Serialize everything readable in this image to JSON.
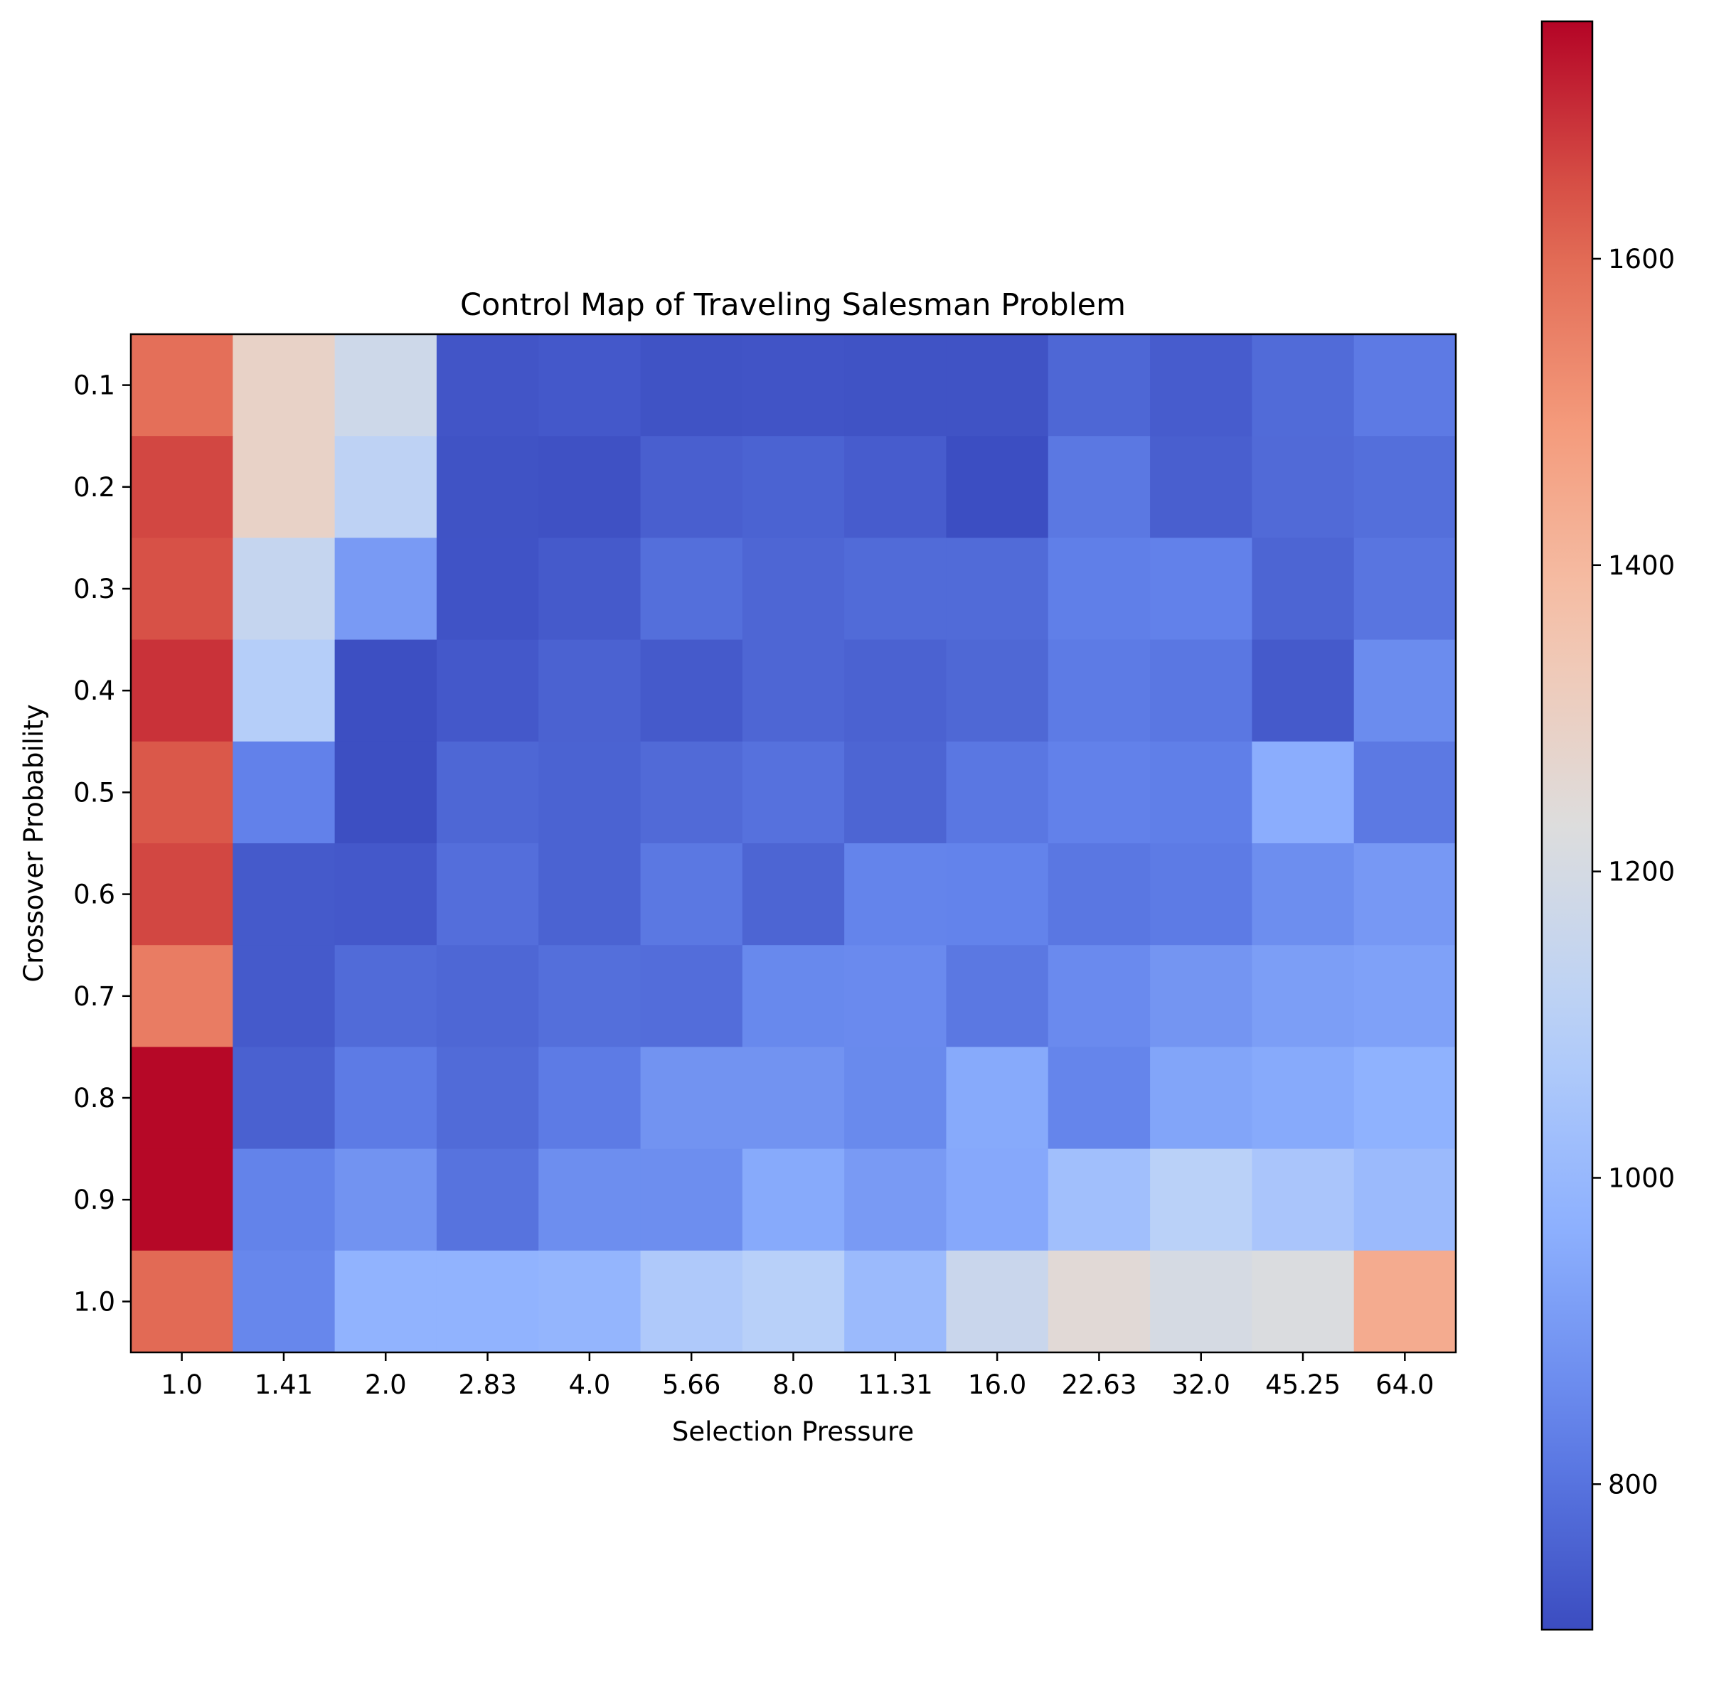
{
  "chart_data": {
    "type": "heatmap",
    "title": "Control Map of Traveling Salesman Problem",
    "xlabel": "Selection Pressure",
    "ylabel": "Crossover Probability",
    "x_categories": [
      "1.0",
      "1.41",
      "2.0",
      "2.83",
      "4.0",
      "5.66",
      "8.0",
      "11.31",
      "16.0",
      "22.63",
      "32.0",
      "45.25",
      "64.0"
    ],
    "y_categories": [
      "0.1",
      "0.2",
      "0.3",
      "0.4",
      "0.5",
      "0.6",
      "0.7",
      "0.8",
      "0.9",
      "1.0"
    ],
    "values": [
      [
        1590,
        1290,
        1175,
        728,
        735,
        722,
        725,
        722,
        722,
        770,
        745,
        780,
        818
      ],
      [
        1660,
        1290,
        1120,
        722,
        718,
        752,
        760,
        745,
        710,
        812,
        752,
        778,
        790
      ],
      [
        1645,
        1145,
        905,
        723,
        738,
        790,
        768,
        780,
        780,
        830,
        835,
        765,
        805
      ],
      [
        1690,
        1090,
        712,
        735,
        758,
        740,
        768,
        758,
        772,
        820,
        810,
        740,
        865
      ],
      [
        1635,
        835,
        712,
        770,
        760,
        778,
        795,
        765,
        810,
        835,
        830,
        960,
        815
      ],
      [
        1660,
        740,
        735,
        788,
        760,
        812,
        765,
        842,
        840,
        810,
        820,
        870,
        900
      ],
      [
        1560,
        740,
        780,
        770,
        790,
        785,
        855,
        860,
        812,
        860,
        890,
        915,
        925
      ],
      [
        1750,
        755,
        820,
        780,
        820,
        885,
        885,
        858,
        950,
        845,
        935,
        950,
        975
      ],
      [
        1750,
        838,
        885,
        800,
        870,
        870,
        950,
        905,
        945,
        1030,
        1105,
        1055,
        1010
      ],
      [
        1600,
        850,
        980,
        980,
        990,
        1070,
        1100,
        1010,
        1160,
        1250,
        1200,
        1220,
        1440
      ]
    ],
    "vmin": 705,
    "vmax": 1755,
    "colormap": "coolwarm",
    "colorbar": {
      "ticks": [
        800,
        1000,
        1200,
        1400,
        1600
      ]
    },
    "grid": false
  }
}
